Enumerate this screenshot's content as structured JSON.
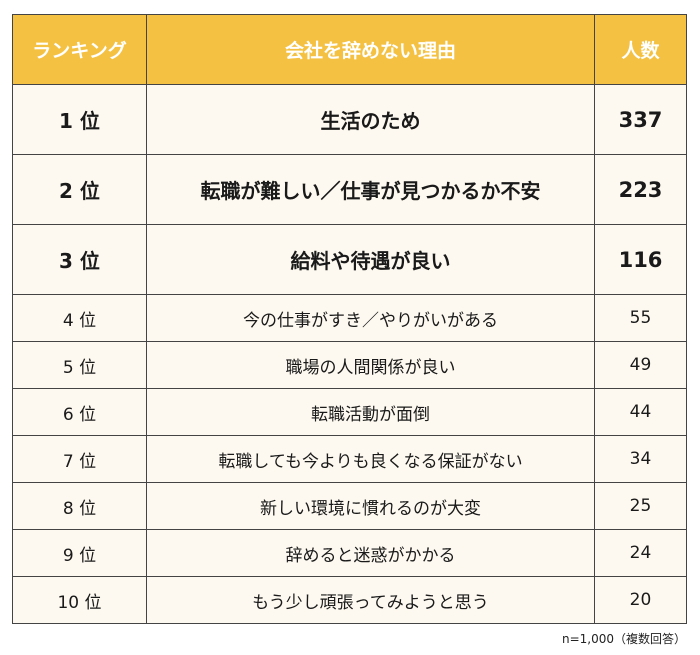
{
  "table": {
    "headers": [
      "ランキング",
      "会社を辞めない理由",
      "人数"
    ],
    "rows": [
      {
        "rank": "1 位",
        "reason": "生活のため",
        "count": "337"
      },
      {
        "rank": "2 位",
        "reason": "転職が難しい／仕事が見つかるか不安",
        "count": "223"
      },
      {
        "rank": "3 位",
        "reason": "給料や待遇が良い",
        "count": "116"
      },
      {
        "rank": "4 位",
        "reason": "今の仕事がすき／やりがいがある",
        "count": "55"
      },
      {
        "rank": "5 位",
        "reason": "職場の人間関係が良い",
        "count": "49"
      },
      {
        "rank": "6 位",
        "reason": "転職活動が面倒",
        "count": "44"
      },
      {
        "rank": "7 位",
        "reason": "転職しても今よりも良くなる保証がない",
        "count": "34"
      },
      {
        "rank": "8 位",
        "reason": "新しい環境に慣れるのが大変",
        "count": "25"
      },
      {
        "rank": "9 位",
        "reason": "辞めると迷惑がかかる",
        "count": "24"
      },
      {
        "rank": "10 位",
        "reason": "もう少し頑張ってみようと思う",
        "count": "20"
      }
    ]
  },
  "footnote": "n=1,000（複数回答）",
  "colors": {
    "header_bg": "#f4c142",
    "header_text": "#ffffff",
    "row_bg": "#fdf9f0",
    "border": "#444444"
  }
}
